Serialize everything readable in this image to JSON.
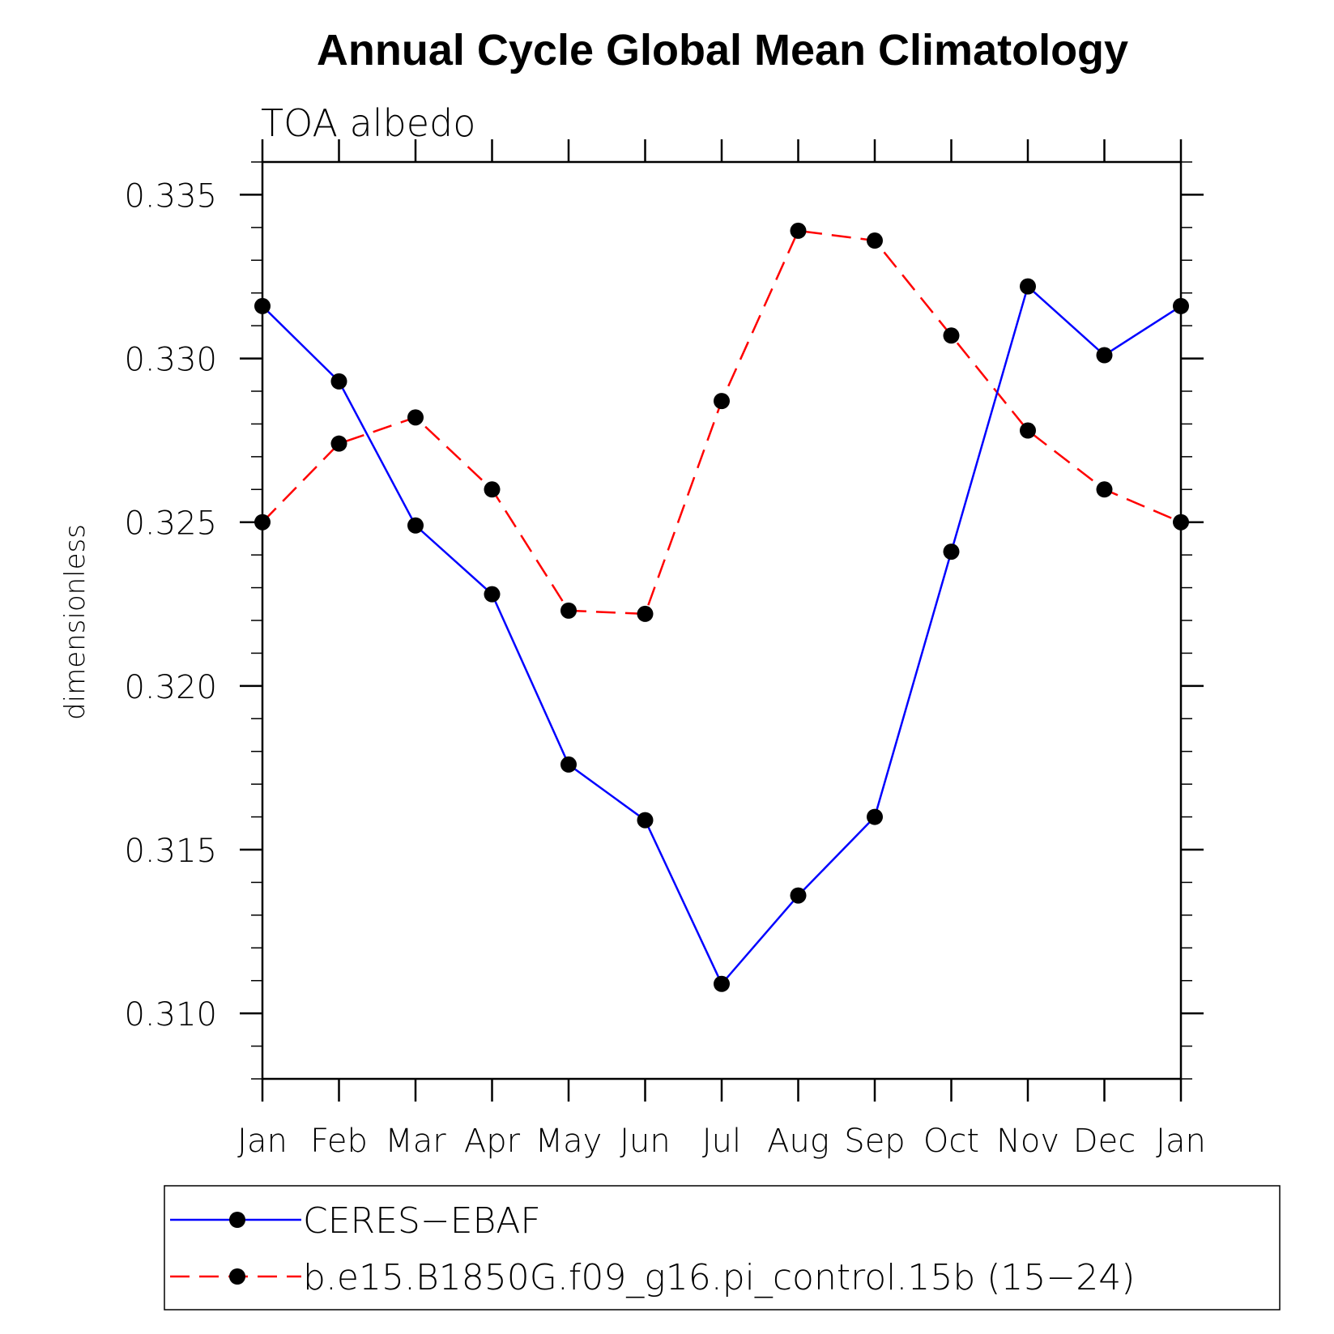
{
  "chart_data": {
    "type": "line",
    "title": "Annual Cycle Global Mean Climatology",
    "subtitle": "TOA albedo",
    "xlabel": "",
    "ylabel": "dimensionless",
    "categories": [
      "Jan",
      "Feb",
      "Mar",
      "Apr",
      "May",
      "Jun",
      "Jul",
      "Aug",
      "Sep",
      "Oct",
      "Nov",
      "Dec",
      "Jan"
    ],
    "ylim": [
      0.308,
      0.336
    ],
    "yticks": [
      "0.310",
      "0.315",
      "0.320",
      "0.325",
      "0.330",
      "0.335"
    ],
    "grid": false,
    "legend_position": "bottom",
    "series": [
      {
        "name": "CERES−EBAF",
        "color": "#0000ff",
        "dash": "solid",
        "marker": "filled-circle",
        "values": [
          0.3316,
          0.3293,
          0.3249,
          0.3228,
          0.3176,
          0.3159,
          0.3109,
          0.3136,
          0.316,
          0.3241,
          0.3322,
          0.3301,
          0.3316
        ]
      },
      {
        "name": "b.e15.B1850G.f09_g16.pi_control.15b (15−24)",
        "color": "#ff0000",
        "dash": "dashed",
        "marker": "filled-circle",
        "values": [
          0.325,
          0.3274,
          0.3282,
          0.326,
          0.3223,
          0.3222,
          0.3287,
          0.3339,
          0.3336,
          0.3307,
          0.3278,
          0.326,
          0.325
        ]
      }
    ]
  }
}
